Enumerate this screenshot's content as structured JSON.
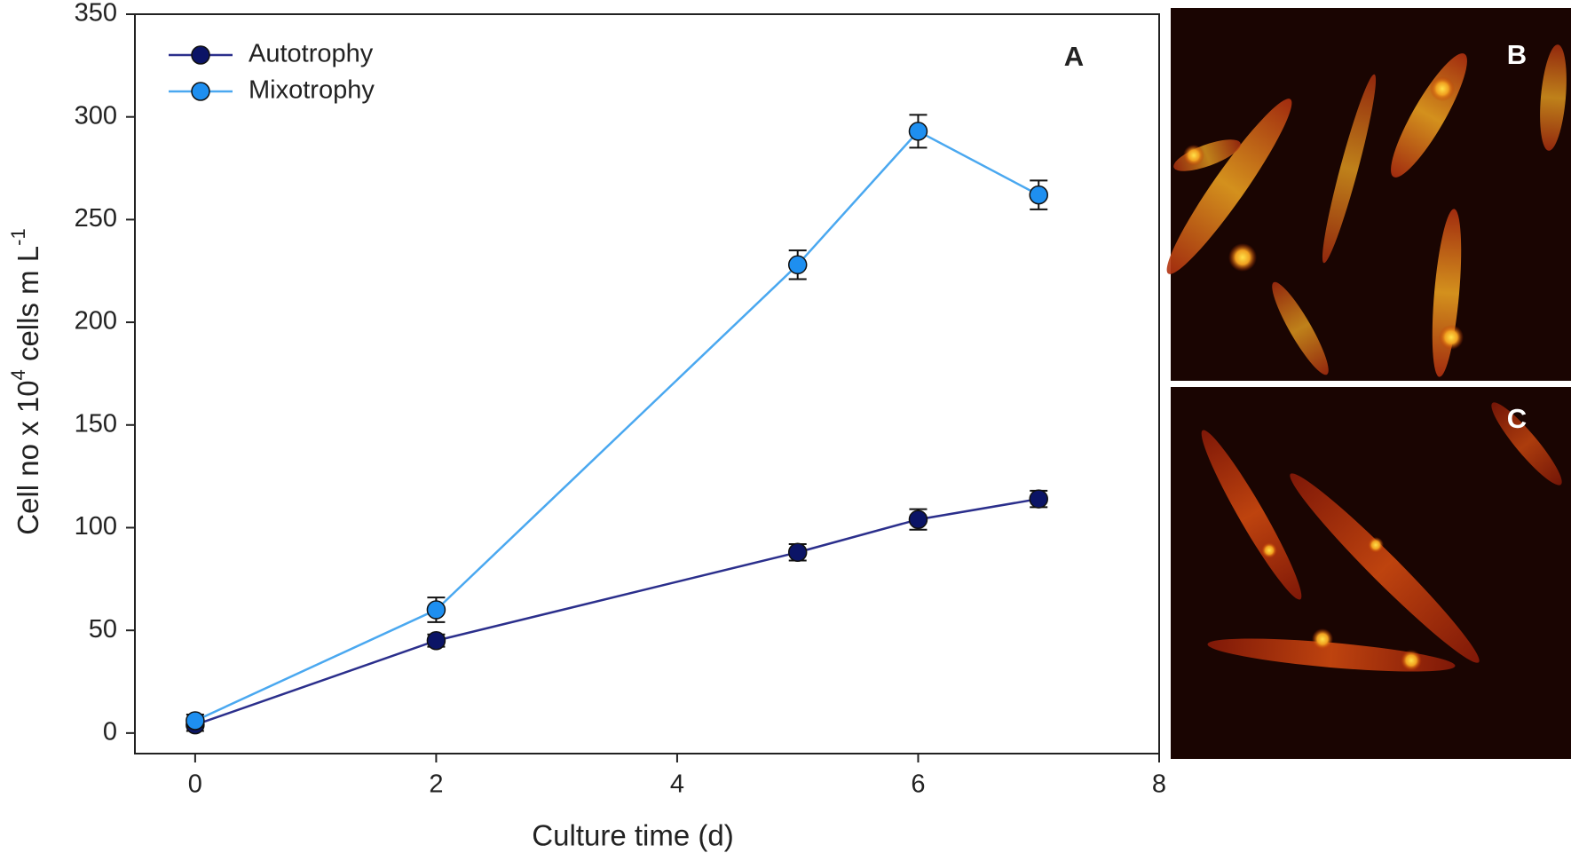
{
  "chart_data": {
    "type": "line",
    "y_label": [
      "Cell no x 10",
      "4",
      " cells m L",
      "-1"
    ],
    "x_label": "Culture time (d)",
    "panel_labels": [
      "A",
      "B",
      "C"
    ],
    "x": [
      0,
      2,
      5,
      6,
      7
    ],
    "series": [
      {
        "name": "Autotrophy",
        "color": "#0b1466",
        "line_color": "#2b2f8c",
        "values": [
          4,
          45,
          88,
          104,
          114
        ],
        "errors": [
          3,
          3,
          4,
          5,
          4
        ]
      },
      {
        "name": "Mixotrophy",
        "color": "#1e8ff0",
        "line_color": "#4aa8f0",
        "values": [
          6,
          60,
          228,
          293,
          262
        ],
        "errors": [
          3,
          6,
          7,
          8,
          7
        ]
      }
    ],
    "xlim": [
      -0.5,
      8
    ],
    "xticks": [
      0,
      2,
      4,
      6,
      8
    ],
    "ylim": [
      -10,
      350
    ],
    "yticks": [
      0,
      50,
      100,
      150,
      200,
      250,
      300,
      350
    ],
    "legend": "upper-left"
  }
}
